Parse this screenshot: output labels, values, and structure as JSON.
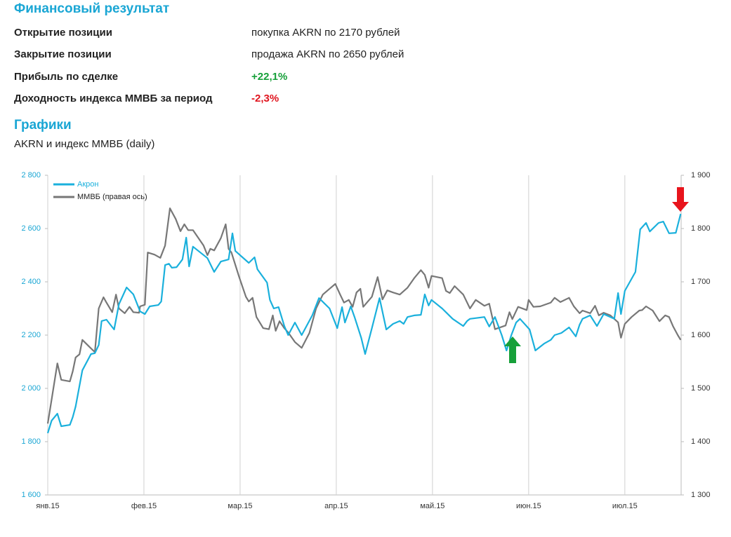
{
  "header": {
    "title": "Финансовый результат"
  },
  "table": {
    "rows": [
      [
        "Открытие позиции",
        "покупка AKRN по 2170 рублей"
      ],
      [
        "Закрытие позиции",
        "продажа AKRN по 2650 рублей"
      ],
      [
        "Прибыль по сделке",
        "+22,1%"
      ],
      [
        "Доходность индекса ММВБ за период",
        "-2,3%"
      ]
    ]
  },
  "section": {
    "title": "Графики",
    "subtitle": "AKRN и индекс ММВБ (daily)"
  },
  "chart_data": {
    "type": "line",
    "xlim": [
      0,
      6.6
    ],
    "xticks": [
      {
        "value": 0,
        "label": "янв.15"
      },
      {
        "value": 1,
        "label": "фев.15"
      },
      {
        "value": 2,
        "label": "мар.15"
      },
      {
        "value": 3,
        "label": "апр.15"
      },
      {
        "value": 4,
        "label": "май.15"
      },
      {
        "value": 5,
        "label": "июн.15"
      },
      {
        "value": 6,
        "label": "июл.15"
      }
    ],
    "ylim": [
      1600,
      2800
    ],
    "yticks": [
      {
        "value": 1600,
        "label": "1 600"
      },
      {
        "value": 1800,
        "label": "1 800"
      },
      {
        "value": 2000,
        "label": "2 000"
      },
      {
        "value": 2200,
        "label": "2 200"
      },
      {
        "value": 2400,
        "label": "2 400"
      },
      {
        "value": 2600,
        "label": "2 600"
      },
      {
        "value": 2800,
        "label": "2 800"
      }
    ],
    "y2lim": [
      1300,
      1900
    ],
    "y2ticks": [
      {
        "value": 1300,
        "label": "1 300"
      },
      {
        "value": 1400,
        "label": "1 400"
      },
      {
        "value": 1500,
        "label": "1 500"
      },
      {
        "value": 1600,
        "label": "1 600"
      },
      {
        "value": 1700,
        "label": "1 700"
      },
      {
        "value": 1800,
        "label": "1 800"
      },
      {
        "value": 1900,
        "label": "1 900"
      }
    ],
    "grid": "x",
    "legend": "top-left",
    "series": [
      {
        "name": "Акрон",
        "color": "#1ab0dc",
        "x": [
          0,
          0.04,
          0.1,
          0.14,
          0.23,
          0.26,
          0.29,
          0.36,
          0.45,
          0.49,
          0.53,
          0.56,
          0.61,
          0.69,
          0.74,
          0.82,
          0.89,
          0.96,
          1.01,
          1.06,
          1.15,
          1.18,
          1.22,
          1.26,
          1.29,
          1.34,
          1.4,
          1.44,
          1.47,
          1.51,
          1.66,
          1.73,
          1.8,
          1.88,
          1.92,
          1.95,
          2.09,
          2.15,
          2.18,
          2.28,
          2.31,
          2.35,
          2.4,
          2.46,
          2.5,
          2.57,
          2.64,
          2.75,
          2.82,
          2.93,
          3.01,
          3.06,
          3.09,
          3.15,
          3.19,
          3.26,
          3.3,
          3.37,
          3.45,
          3.52,
          3.59,
          3.66,
          3.7,
          3.74,
          3.81,
          3.88,
          3.92,
          3.96,
          3.99,
          4.1,
          4.21,
          4.32,
          4.36,
          4.39,
          4.54,
          4.59,
          4.65,
          4.72,
          4.77,
          4.82,
          4.87,
          4.91,
          5.01,
          5.07,
          5.16,
          5.23,
          5.27,
          5.34,
          5.42,
          5.49,
          5.53,
          5.56,
          5.64,
          5.71,
          5.78,
          5.89,
          5.93,
          5.96,
          6.0,
          6.11,
          6.16,
          6.22,
          6.26,
          6.35,
          6.4,
          6.46,
          6.53,
          6.58
        ],
        "values": [
          1832,
          1879,
          1905,
          1858,
          1863,
          1892,
          1932,
          2068,
          2129,
          2132,
          2163,
          2253,
          2258,
          2221,
          2316,
          2379,
          2353,
          2289,
          2279,
          2308,
          2313,
          2326,
          2463,
          2468,
          2453,
          2455,
          2484,
          2566,
          2458,
          2532,
          2489,
          2437,
          2476,
          2484,
          2582,
          2516,
          2471,
          2492,
          2447,
          2397,
          2332,
          2300,
          2305,
          2234,
          2200,
          2247,
          2200,
          2274,
          2339,
          2300,
          2226,
          2305,
          2247,
          2308,
          2268,
          2189,
          2129,
          2226,
          2339,
          2221,
          2242,
          2253,
          2242,
          2268,
          2274,
          2276,
          2353,
          2311,
          2332,
          2300,
          2261,
          2234,
          2253,
          2261,
          2268,
          2232,
          2268,
          2200,
          2142,
          2200,
          2247,
          2261,
          2221,
          2142,
          2168,
          2182,
          2200,
          2208,
          2229,
          2195,
          2239,
          2261,
          2274,
          2234,
          2279,
          2261,
          2358,
          2279,
          2366,
          2437,
          2597,
          2621,
          2589,
          2621,
          2626,
          2582,
          2584,
          2655
        ]
      },
      {
        "name": "ММВБ (правая ось)",
        "color": "#777777",
        "axis": "y2",
        "x": [
          0,
          0.04,
          0.1,
          0.14,
          0.23,
          0.26,
          0.29,
          0.33,
          0.36,
          0.45,
          0.49,
          0.53,
          0.58,
          0.61,
          0.67,
          0.71,
          0.74,
          0.8,
          0.85,
          0.89,
          0.95,
          0.96,
          1.01,
          1.04,
          1.11,
          1.17,
          1.22,
          1.27,
          1.33,
          1.38,
          1.42,
          1.46,
          1.51,
          1.62,
          1.66,
          1.69,
          1.73,
          1.8,
          1.85,
          1.88,
          1.91,
          1.99,
          2.06,
          2.09,
          2.13,
          2.17,
          2.24,
          2.3,
          2.34,
          2.37,
          2.41,
          2.46,
          2.5,
          2.57,
          2.64,
          2.72,
          2.79,
          2.86,
          2.93,
          2.99,
          3.04,
          3.08,
          3.13,
          3.17,
          3.21,
          3.25,
          3.28,
          3.37,
          3.43,
          3.48,
          3.53,
          3.59,
          3.66,
          3.74,
          3.81,
          3.88,
          3.92,
          3.96,
          3.99,
          4.1,
          4.14,
          4.18,
          4.23,
          4.32,
          4.39,
          4.45,
          4.54,
          4.59,
          4.65,
          4.76,
          4.8,
          4.83,
          4.89,
          4.98,
          5.0,
          5.05,
          5.12,
          5.23,
          5.27,
          5.33,
          5.42,
          5.47,
          5.53,
          5.56,
          5.64,
          5.69,
          5.73,
          5.78,
          5.85,
          5.93,
          5.96,
          6.0,
          6.07,
          6.15,
          6.18,
          6.22,
          6.29,
          6.36,
          6.42,
          6.46,
          6.5,
          6.55,
          6.58
        ],
        "values": [
          1434,
          1479,
          1547,
          1516,
          1513,
          1532,
          1558,
          1564,
          1591,
          1575,
          1568,
          1650,
          1671,
          1661,
          1643,
          1676,
          1650,
          1641,
          1653,
          1643,
          1642,
          1654,
          1657,
          1755,
          1751,
          1745,
          1768,
          1838,
          1818,
          1795,
          1808,
          1797,
          1797,
          1768,
          1750,
          1762,
          1759,
          1782,
          1808,
          1762,
          1755,
          1709,
          1672,
          1663,
          1670,
          1634,
          1613,
          1611,
          1637,
          1608,
          1626,
          1613,
          1605,
          1587,
          1576,
          1604,
          1650,
          1676,
          1687,
          1696,
          1676,
          1661,
          1666,
          1653,
          1680,
          1687,
          1653,
          1672,
          1709,
          1667,
          1684,
          1680,
          1676,
          1689,
          1707,
          1722,
          1713,
          1689,
          1711,
          1707,
          1683,
          1679,
          1692,
          1676,
          1650,
          1666,
          1655,
          1659,
          1611,
          1618,
          1643,
          1630,
          1653,
          1647,
          1666,
          1653,
          1654,
          1661,
          1670,
          1662,
          1670,
          1654,
          1641,
          1646,
          1641,
          1655,
          1637,
          1642,
          1637,
          1624,
          1595,
          1621,
          1634,
          1646,
          1647,
          1654,
          1646,
          1626,
          1637,
          1634,
          1617,
          1600,
          1591
        ]
      }
    ]
  }
}
